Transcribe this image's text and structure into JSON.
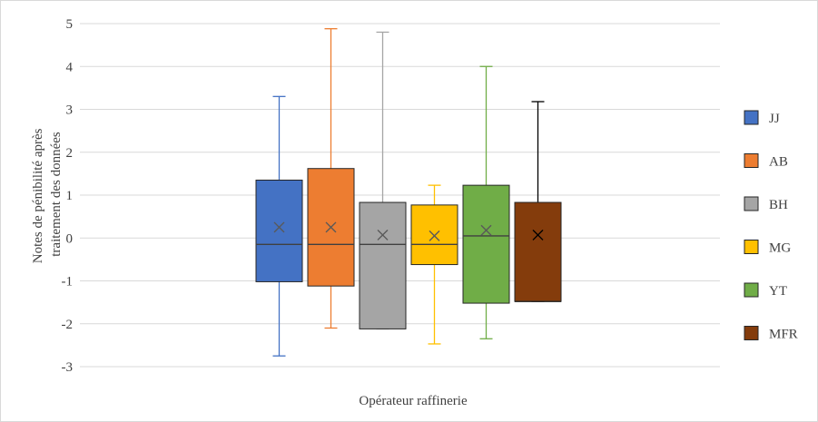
{
  "chart_data": {
    "type": "boxplot",
    "title": "",
    "xlabel": "Opérateur raffinerie",
    "ylabel": [
      "Notes de pénibilité après",
      "traitement des données"
    ],
    "ylim": [
      -3,
      5
    ],
    "yticks": [
      5,
      4,
      3,
      2,
      1,
      0,
      -1,
      -2,
      -3
    ],
    "ytick_labels": [
      "5",
      "4",
      "3",
      "2",
      "1",
      "0",
      "-1",
      "-2",
      "-3"
    ],
    "grid": "horizontal",
    "legend_position": "right",
    "series": [
      {
        "name": "JJ",
        "color": "#4472C4",
        "whisker_color": "#4472C4",
        "min": -2.75,
        "q1": -1.02,
        "median": -0.15,
        "q3": 1.35,
        "max": 3.3,
        "mean": 0.25
      },
      {
        "name": "AB",
        "color": "#ED7D31",
        "whisker_color": "#ED7D31",
        "min": -2.1,
        "q1": -1.12,
        "median": -0.15,
        "q3": 1.62,
        "max": 4.88,
        "mean": 0.25
      },
      {
        "name": "BH",
        "color": "#A5A5A5",
        "whisker_color": "#A5A5A5",
        "min": -2.12,
        "q1": -2.12,
        "median": -0.15,
        "q3": 0.83,
        "max": 4.8,
        "mean": 0.07
      },
      {
        "name": "MG",
        "color": "#FFC000",
        "whisker_color": "#FFC000",
        "min": -2.47,
        "q1": -0.62,
        "median": -0.15,
        "q3": 0.77,
        "max": 1.23,
        "mean": 0.05
      },
      {
        "name": "YT",
        "color": "#70AD47",
        "whisker_color": "#70AD47",
        "min": -2.35,
        "q1": -1.52,
        "median": 0.05,
        "q3": 1.23,
        "max": 4.0,
        "mean": 0.18
      },
      {
        "name": "MFR",
        "color": "#843C0C",
        "whisker_color": "#000000",
        "min": -1.48,
        "q1": -1.48,
        "median": -1.48,
        "q3": 0.83,
        "max": 3.18,
        "mean": 0.07
      }
    ]
  }
}
